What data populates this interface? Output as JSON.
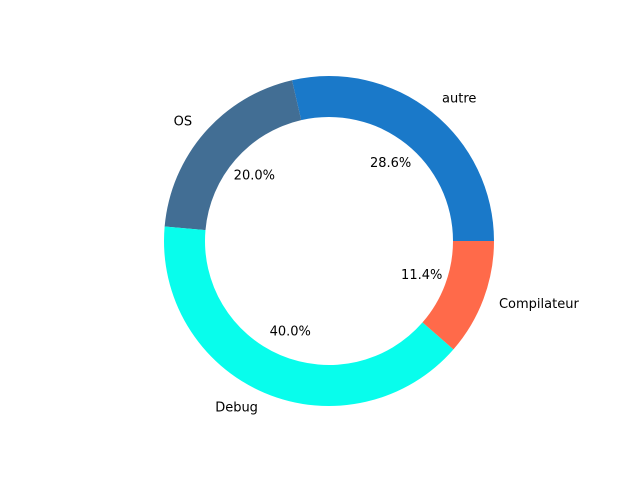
{
  "chart_data": {
    "type": "pie",
    "variant": "donut",
    "title": "",
    "start_angle_deg": 0,
    "direction": "counterclockwise",
    "slices": [
      {
        "label": "autre",
        "value": 28.6,
        "pct_label": "28.6%",
        "color": "#1a79c9"
      },
      {
        "label": "OS",
        "value": 20.0,
        "pct_label": "20.0%",
        "color": "#426e94"
      },
      {
        "label": "Debug",
        "value": 40.0,
        "pct_label": "40.0%",
        "color": "#08fdec"
      },
      {
        "label": "Compilateur",
        "value": 11.4,
        "pct_label": "11.4%",
        "color": "#ff6a4a"
      }
    ]
  }
}
